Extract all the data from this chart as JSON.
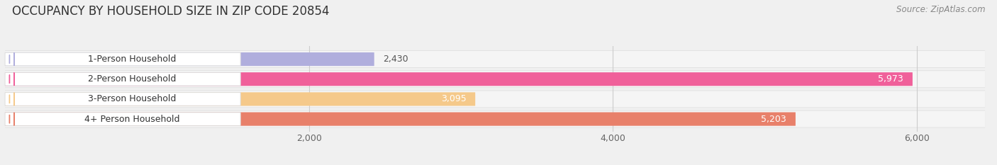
{
  "title": "OCCUPANCY BY HOUSEHOLD SIZE IN ZIP CODE 20854",
  "source": "Source: ZipAtlas.com",
  "categories": [
    "1-Person Household",
    "2-Person Household",
    "3-Person Household",
    "4+ Person Household"
  ],
  "values": [
    2430,
    5973,
    3095,
    5203
  ],
  "bar_colors": [
    "#b0aedd",
    "#f0609a",
    "#f5c98a",
    "#e8806a"
  ],
  "background_color": "#f0f0f0",
  "row_bg_color": "#e8e8e8",
  "xlim": [
    0,
    6450
  ],
  "xticks": [
    2000,
    4000,
    6000
  ],
  "xtick_labels": [
    "2,000",
    "4,000",
    "6,000"
  ],
  "title_fontsize": 12,
  "source_fontsize": 8.5,
  "bar_label_fontsize": 9,
  "category_fontsize": 9,
  "value_labels": [
    "2,430",
    "5,973",
    "3,095",
    "5,203"
  ],
  "value_inside": [
    false,
    true,
    true,
    true
  ],
  "value_text_colors": [
    "#555555",
    "#ffffff",
    "#555555",
    "#ffffff"
  ]
}
